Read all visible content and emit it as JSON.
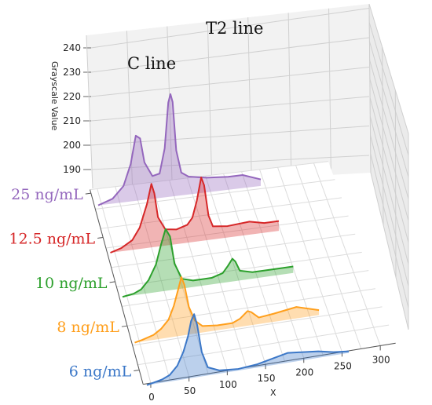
{
  "chart_data": {
    "type": "line",
    "subtype": "3d-waterfall",
    "xlabel": "X",
    "ylabel": "Grayscale Value",
    "x_ticks": [
      0,
      50,
      100,
      150,
      200,
      250,
      300
    ],
    "y_ticks": [
      190,
      200,
      210,
      220,
      230,
      240
    ],
    "annotations": [
      {
        "text": "C line"
      },
      {
        "text": "T2 line"
      }
    ],
    "series": [
      {
        "name": "25 ng/mL",
        "color": "#9467bd",
        "points": [
          [
            0,
            182
          ],
          [
            20,
            185
          ],
          [
            35,
            192
          ],
          [
            45,
            205
          ],
          [
            52,
            222
          ],
          [
            58,
            220
          ],
          [
            64,
            205
          ],
          [
            75,
            196
          ],
          [
            85,
            197
          ],
          [
            92,
            212
          ],
          [
            97,
            240
          ],
          [
            100,
            245
          ],
          [
            103,
            240
          ],
          [
            108,
            210
          ],
          [
            115,
            196
          ],
          [
            125,
            193
          ],
          [
            150,
            191
          ],
          [
            180,
            190
          ],
          [
            200,
            190
          ],
          [
            225,
            186
          ]
        ]
      },
      {
        "name": "12.5 ng/mL",
        "color": "#d62728",
        "points": [
          [
            0,
            180
          ],
          [
            15,
            182
          ],
          [
            30,
            186
          ],
          [
            40,
            193
          ],
          [
            50,
            207
          ],
          [
            56,
            219
          ],
          [
            60,
            213
          ],
          [
            65,
            198
          ],
          [
            75,
            190
          ],
          [
            90,
            189
          ],
          [
            105,
            191
          ],
          [
            112,
            195
          ],
          [
            118,
            205
          ],
          [
            124,
            219
          ],
          [
            128,
            214
          ],
          [
            134,
            195
          ],
          [
            140,
            188
          ],
          [
            160,
            187
          ],
          [
            190,
            188
          ],
          [
            210,
            186
          ],
          [
            230,
            186
          ]
        ]
      },
      {
        "name": "10 ng/mL",
        "color": "#2ca02c",
        "points": [
          [
            0,
            180
          ],
          [
            15,
            181
          ],
          [
            25,
            183
          ],
          [
            35,
            188
          ],
          [
            45,
            197
          ],
          [
            52,
            209
          ],
          [
            58,
            218
          ],
          [
            64,
            213
          ],
          [
            70,
            196
          ],
          [
            80,
            186
          ],
          [
            95,
            184
          ],
          [
            120,
            184
          ],
          [
            135,
            186
          ],
          [
            142,
            190
          ],
          [
            148,
            194
          ],
          [
            152,
            192
          ],
          [
            158,
            186
          ],
          [
            175,
            184
          ],
          [
            200,
            184
          ],
          [
            230,
            184
          ]
        ]
      },
      {
        "name": "8 ng/mL",
        "color": "#ff9f1c",
        "points": [
          [
            0,
            179
          ],
          [
            10,
            180
          ],
          [
            25,
            182
          ],
          [
            35,
            185
          ],
          [
            45,
            190
          ],
          [
            52,
            198
          ],
          [
            58,
            208
          ],
          [
            62,
            215
          ],
          [
            66,
            210
          ],
          [
            72,
            196
          ],
          [
            80,
            187
          ],
          [
            90,
            183
          ],
          [
            110,
            182
          ],
          [
            130,
            182
          ],
          [
            140,
            184
          ],
          [
            150,
            188
          ],
          [
            155,
            187
          ],
          [
            165,
            183
          ],
          [
            185,
            184
          ],
          [
            200,
            185
          ],
          [
            215,
            186
          ],
          [
            230,
            184
          ],
          [
            245,
            182
          ]
        ]
      },
      {
        "name": "6 ng/mL",
        "color": "#3c78c8",
        "points": [
          [
            0,
            180
          ],
          [
            10,
            181
          ],
          [
            20,
            182
          ],
          [
            30,
            184
          ],
          [
            40,
            189
          ],
          [
            48,
            197
          ],
          [
            54,
            206
          ],
          [
            58,
            215
          ],
          [
            62,
            219
          ],
          [
            66,
            212
          ],
          [
            72,
            195
          ],
          [
            80,
            185
          ],
          [
            95,
            182
          ],
          [
            120,
            181
          ],
          [
            145,
            182
          ],
          [
            165,
            184
          ],
          [
            185,
            186
          ],
          [
            205,
            185
          ],
          [
            225,
            184
          ],
          [
            245,
            182
          ],
          [
            265,
            181
          ]
        ]
      }
    ],
    "view": {
      "xlim": [
        -10,
        320
      ],
      "ylim": [
        185,
        245
      ],
      "projection": "3d",
      "grid": true
    }
  }
}
